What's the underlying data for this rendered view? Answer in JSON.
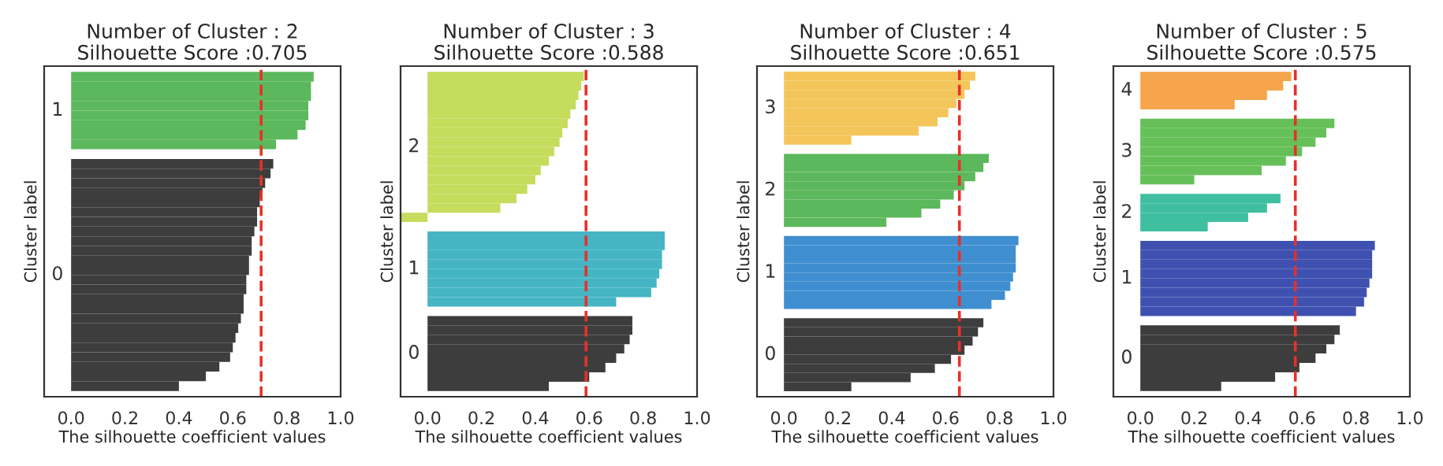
{
  "chart_data": [
    {
      "type": "bar",
      "orientation": "horizontal",
      "title": "Number of Cluster : 2\nSilhouette Score :0.705",
      "xlabel": "The silhouette coefficient values",
      "ylabel": "Cluster label",
      "xlim": [
        -0.1,
        1.0
      ],
      "tick_labels": "x",
      "xticks": [
        {
          "value": 0,
          "label": "0.0"
        },
        {
          "value": 0.2,
          "label": "0.2"
        },
        {
          "value": 0.4,
          "label": "0.4"
        },
        {
          "value": 0.6,
          "label": "0.6"
        },
        {
          "value": 0.8,
          "label": "0.8"
        },
        {
          "value": 1,
          "label": "1.0"
        }
      ],
      "categories": [
        null,
        null,
        null,
        null,
        null,
        null,
        null,
        null,
        null,
        null,
        null,
        null,
        null,
        null,
        null,
        null,
        null,
        null,
        null,
        null,
        null,
        null,
        null,
        null,
        null,
        null,
        null,
        null,
        null,
        null,
        null,
        null,
        null
      ],
      "series": [
        {
          "name": "0",
          "color": "#3d3d3d",
          "values": [
            null,
            null,
            null,
            null,
            null,
            null,
            null,
            null,
            null,
            0.75,
            0.74,
            0.72,
            0.71,
            0.7,
            0.69,
            0.69,
            0.68,
            0.67,
            0.67,
            0.66,
            0.66,
            0.65,
            0.65,
            0.64,
            0.64,
            0.63,
            0.62,
            0.61,
            0.6,
            0.59,
            0.55,
            0.5,
            0.4
          ]
        },
        {
          "name": "1",
          "color": "#5cb85c",
          "values": [
            0.9,
            0.89,
            0.89,
            0.88,
            0.88,
            0.87,
            0.84,
            0.76,
            null,
            null,
            null,
            null,
            null,
            null,
            null,
            null,
            null,
            null,
            null,
            null,
            null,
            null,
            null,
            null,
            null,
            null,
            null,
            null,
            null,
            null,
            null,
            null,
            null
          ]
        }
      ],
      "ref_lines": [
        {
          "axis": "x",
          "value": 0.705,
          "color": "#e8302a",
          "line_style": "dashed"
        }
      ]
    },
    {
      "type": "bar",
      "orientation": "horizontal",
      "title": "Number of Cluster : 3\nSilhouette Score :0.588",
      "xlabel": "The silhouette coefficient values",
      "ylabel": "Cluster label",
      "xlim": [
        -0.1,
        1.0
      ],
      "tick_labels": "x",
      "xticks": [
        {
          "value": 0,
          "label": "0.0"
        },
        {
          "value": 0.2,
          "label": "0.2"
        },
        {
          "value": 0.4,
          "label": "0.4"
        },
        {
          "value": 0.6,
          "label": "0.6"
        },
        {
          "value": 0.8,
          "label": "0.8"
        },
        {
          "value": 1,
          "label": "1.0"
        }
      ],
      "categories": [
        null,
        null,
        null,
        null,
        null,
        null,
        null,
        null,
        null,
        null,
        null,
        null,
        null,
        null,
        null,
        null,
        null,
        null,
        null,
        null,
        null,
        null,
        null,
        null,
        null,
        null,
        null,
        null,
        null,
        null,
        null,
        null,
        null,
        null
      ],
      "series": [
        {
          "name": "0",
          "color": "#3d3d3d",
          "values": [
            null,
            null,
            null,
            null,
            null,
            null,
            null,
            null,
            null,
            null,
            null,
            null,
            null,
            null,
            null,
            null,
            null,
            null,
            null,
            null,
            null,
            null,
            null,
            null,
            null,
            null,
            0.76,
            0.76,
            0.75,
            0.73,
            0.7,
            0.66,
            0.6,
            0.45
          ]
        },
        {
          "name": "1",
          "color": "#45b5c4",
          "values": [
            null,
            null,
            null,
            null,
            null,
            null,
            null,
            null,
            null,
            null,
            null,
            null,
            null,
            null,
            null,
            null,
            null,
            0.88,
            0.88,
            0.87,
            0.87,
            0.86,
            0.85,
            0.83,
            0.7,
            null,
            null,
            null,
            null,
            null,
            null,
            null,
            null,
            null
          ]
        },
        {
          "name": "2",
          "color": "#c5dc5c",
          "values": [
            0.58,
            0.57,
            0.56,
            0.55,
            0.53,
            0.52,
            0.5,
            0.49,
            0.47,
            0.45,
            0.42,
            0.4,
            0.37,
            0.33,
            0.27,
            -0.1,
            null,
            null,
            null,
            null,
            null,
            null,
            null,
            null,
            null,
            null,
            null,
            null,
            null,
            null,
            null,
            null,
            null,
            null
          ]
        }
      ],
      "ref_lines": [
        {
          "axis": "x",
          "value": 0.588,
          "color": "#e8302a",
          "line_style": "dashed"
        }
      ]
    },
    {
      "type": "bar",
      "orientation": "horizontal",
      "title": "Number of Cluster : 4\nSilhouette Score :0.651",
      "xlabel": "The silhouette coefficient values",
      "ylabel": "Cluster label",
      "xlim": [
        -0.1,
        1.0
      ],
      "tick_labels": "x",
      "xticks": [
        {
          "value": 0,
          "label": "0.0"
        },
        {
          "value": 0.2,
          "label": "0.2"
        },
        {
          "value": 0.4,
          "label": "0.4"
        },
        {
          "value": 0.6,
          "label": "0.6"
        },
        {
          "value": 0.8,
          "label": "0.8"
        },
        {
          "value": 1,
          "label": "1.0"
        }
      ],
      "categories": [
        null,
        null,
        null,
        null,
        null,
        null,
        null,
        null,
        null,
        null,
        null,
        null,
        null,
        null,
        null,
        null,
        null,
        null,
        null,
        null,
        null,
        null,
        null,
        null,
        null,
        null,
        null,
        null,
        null,
        null,
        null,
        null,
        null,
        null,
        null
      ],
      "series": [
        {
          "name": "0",
          "color": "#3d3d3d",
          "values": [
            null,
            null,
            null,
            null,
            null,
            null,
            null,
            null,
            null,
            null,
            null,
            null,
            null,
            null,
            null,
            null,
            null,
            null,
            null,
            null,
            null,
            null,
            null,
            null,
            null,
            null,
            null,
            0.74,
            0.72,
            0.7,
            0.67,
            0.62,
            0.56,
            0.47,
            0.25
          ]
        },
        {
          "name": "1",
          "color": "#3f8fd0",
          "values": [
            null,
            null,
            null,
            null,
            null,
            null,
            null,
            null,
            null,
            null,
            null,
            null,
            null,
            null,
            null,
            null,
            null,
            null,
            0.87,
            0.86,
            0.86,
            0.86,
            0.85,
            0.84,
            0.82,
            0.77,
            null,
            null,
            null,
            null,
            null,
            null,
            null,
            null,
            null
          ]
        },
        {
          "name": "2",
          "color": "#5cb85c",
          "values": [
            null,
            null,
            null,
            null,
            null,
            null,
            null,
            null,
            null,
            0.76,
            0.74,
            0.71,
            0.67,
            0.63,
            0.58,
            0.51,
            0.38,
            null,
            null,
            null,
            null,
            null,
            null,
            null,
            null,
            null,
            null,
            null,
            null,
            null,
            null,
            null,
            null,
            null,
            null
          ]
        },
        {
          "name": "3",
          "color": "#f4c55a",
          "values": [
            0.71,
            0.69,
            0.67,
            0.64,
            0.61,
            0.57,
            0.5,
            0.25,
            null,
            null,
            null,
            null,
            null,
            null,
            null,
            null,
            null,
            null,
            null,
            null,
            null,
            null,
            null,
            null,
            null,
            null,
            null,
            null,
            null,
            null,
            null,
            null,
            null,
            null,
            null
          ]
        }
      ],
      "ref_lines": [
        {
          "axis": "x",
          "value": 0.651,
          "color": "#e8302a",
          "line_style": "dashed"
        }
      ]
    },
    {
      "type": "bar",
      "orientation": "horizontal",
      "title": "Number of Cluster : 5\nSilhouette Score :0.575",
      "xlabel": "The silhouette coefficient values",
      "ylabel": "Cluster label",
      "xlim": [
        -0.1,
        1.0
      ],
      "tick_labels": "x",
      "xticks": [
        {
          "value": 0,
          "label": "0.0"
        },
        {
          "value": 0.2,
          "label": "0.2"
        },
        {
          "value": 0.4,
          "label": "0.4"
        },
        {
          "value": 0.6,
          "label": "0.6"
        },
        {
          "value": 0.8,
          "label": "0.8"
        },
        {
          "value": 1,
          "label": "1.0"
        }
      ],
      "categories": [
        null,
        null,
        null,
        null,
        null,
        null,
        null,
        null,
        null,
        null,
        null,
        null,
        null,
        null,
        null,
        null,
        null,
        null,
        null,
        null,
        null,
        null,
        null,
        null,
        null,
        null,
        null,
        null,
        null,
        null,
        null,
        null,
        null,
        null
      ],
      "series": [
        {
          "name": "0",
          "color": "#3d3d3d",
          "values": [
            null,
            null,
            null,
            null,
            null,
            null,
            null,
            null,
            null,
            null,
            null,
            null,
            null,
            null,
            null,
            null,
            null,
            null,
            null,
            null,
            null,
            null,
            null,
            null,
            null,
            null,
            null,
            0.74,
            0.72,
            0.69,
            0.65,
            0.59,
            0.5,
            0.3
          ]
        },
        {
          "name": "1",
          "color": "#3f51b0",
          "values": [
            null,
            null,
            null,
            null,
            null,
            null,
            null,
            null,
            null,
            null,
            null,
            null,
            null,
            null,
            null,
            null,
            null,
            null,
            0.87,
            0.86,
            0.86,
            0.86,
            0.85,
            0.84,
            0.83,
            0.8,
            null,
            null,
            null,
            null,
            null,
            null,
            null,
            null
          ]
        },
        {
          "name": "2",
          "color": "#40bfa0",
          "values": [
            null,
            null,
            null,
            null,
            null,
            null,
            null,
            null,
            null,
            null,
            null,
            null,
            null,
            0.52,
            0.47,
            0.4,
            0.25,
            null,
            null,
            null,
            null,
            null,
            null,
            null,
            null,
            null,
            null,
            null,
            null,
            null,
            null,
            null,
            null,
            null
          ]
        },
        {
          "name": "3",
          "color": "#66c05a",
          "values": [
            null,
            null,
            null,
            null,
            null,
            0.72,
            0.69,
            0.65,
            0.6,
            0.54,
            0.45,
            0.2,
            null,
            null,
            null,
            null,
            null,
            null,
            null,
            null,
            null,
            null,
            null,
            null,
            null,
            null,
            null,
            null,
            null,
            null,
            null,
            null,
            null,
            null
          ]
        },
        {
          "name": "4",
          "color": "#f6a54c",
          "values": [
            0.56,
            0.53,
            0.47,
            0.35,
            null,
            null,
            null,
            null,
            null,
            null,
            null,
            null,
            null,
            null,
            null,
            null,
            null,
            null,
            null,
            null,
            null,
            null,
            null,
            null,
            null,
            null,
            null,
            null,
            null,
            null,
            null,
            null,
            null,
            null
          ]
        }
      ],
      "ref_lines": [
        {
          "axis": "x",
          "value": 0.575,
          "color": "#e8302a",
          "line_style": "dashed"
        }
      ]
    }
  ]
}
